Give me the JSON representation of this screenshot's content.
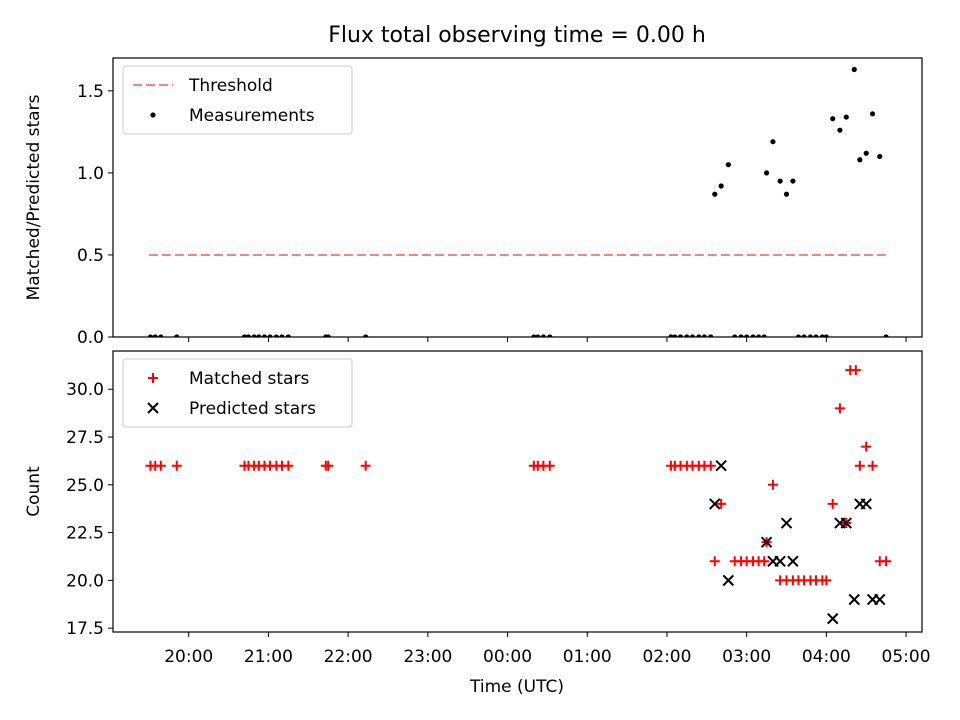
{
  "chart_data": {
    "type": "scatter",
    "title": "Flux total observing time = 0.00 h",
    "xlabel": "Time (UTC)",
    "xlim": [
      -4.95,
      5.2
    ],
    "x_tick_labels": [
      {
        "t": -4.0,
        "label": "20:00"
      },
      {
        "t": -3.0,
        "label": "21:00"
      },
      {
        "t": -2.0,
        "label": "22:00"
      },
      {
        "t": -1.0,
        "label": "23:00"
      },
      {
        "t": 0.0,
        "label": "00:00"
      },
      {
        "t": 1.0,
        "label": "01:00"
      },
      {
        "t": 2.0,
        "label": "02:00"
      },
      {
        "t": 3.0,
        "label": "03:00"
      },
      {
        "t": 4.0,
        "label": "04:00"
      },
      {
        "t": 5.0,
        "label": "05:00"
      }
    ],
    "panels": [
      {
        "ylabel": "Matched/Predicted stars",
        "ylim": [
          0,
          1.7
        ],
        "yticks": [
          0.0,
          0.5,
          1.0,
          1.5
        ],
        "ytick_labels": [
          "0.0",
          "0.5",
          "1.0",
          "1.5"
        ],
        "legend_position": "top-left",
        "series": [
          {
            "name": "Threshold",
            "kind": "dashed-line",
            "color": "#ff8080",
            "x": [
              -4.5,
              4.75
            ],
            "y": [
              0.5,
              0.5
            ]
          },
          {
            "name": "Measurements",
            "kind": "dot",
            "color": "#000000",
            "points": [
              [
                -4.48,
                0
              ],
              [
                -4.42,
                0
              ],
              [
                -4.35,
                0
              ],
              [
                -4.15,
                0
              ],
              [
                -3.3,
                0
              ],
              [
                -3.25,
                0
              ],
              [
                -3.18,
                0
              ],
              [
                -3.12,
                0
              ],
              [
                -3.05,
                0
              ],
              [
                -2.98,
                0
              ],
              [
                -2.9,
                0
              ],
              [
                -2.83,
                0
              ],
              [
                -2.75,
                0
              ],
              [
                -2.28,
                0
              ],
              [
                -2.25,
                0
              ],
              [
                -1.78,
                0
              ],
              [
                0.33,
                0
              ],
              [
                0.38,
                0
              ],
              [
                0.45,
                0
              ],
              [
                0.53,
                0
              ],
              [
                2.05,
                0
              ],
              [
                2.1,
                0
              ],
              [
                2.17,
                0
              ],
              [
                2.25,
                0
              ],
              [
                2.32,
                0
              ],
              [
                2.4,
                0
              ],
              [
                2.47,
                0
              ],
              [
                2.55,
                0
              ],
              [
                2.6,
                0.87
              ],
              [
                2.68,
                0.92
              ],
              [
                2.77,
                1.05
              ],
              [
                2.85,
                0
              ],
              [
                2.93,
                0
              ],
              [
                3.0,
                0
              ],
              [
                3.08,
                0
              ],
              [
                3.15,
                0
              ],
              [
                3.22,
                0
              ],
              [
                3.25,
                1.0
              ],
              [
                3.33,
                1.19
              ],
              [
                3.42,
                0.95
              ],
              [
                3.5,
                0.87
              ],
              [
                3.58,
                0.95
              ],
              [
                3.65,
                0
              ],
              [
                3.72,
                0
              ],
              [
                3.8,
                0
              ],
              [
                3.87,
                0
              ],
              [
                3.95,
                0
              ],
              [
                4.0,
                0
              ],
              [
                4.08,
                1.33
              ],
              [
                4.17,
                1.26
              ],
              [
                4.25,
                1.34
              ],
              [
                4.35,
                1.63
              ],
              [
                4.42,
                1.08
              ],
              [
                4.5,
                1.12
              ],
              [
                4.58,
                1.36
              ],
              [
                4.67,
                1.1
              ],
              [
                4.75,
                0
              ]
            ]
          }
        ]
      },
      {
        "ylabel": "Count",
        "ylim": [
          17.3,
          32.0
        ],
        "yticks": [
          17.5,
          20.0,
          22.5,
          25.0,
          27.5,
          30.0
        ],
        "ytick_labels": [
          "17.5",
          "20.0",
          "22.5",
          "25.0",
          "27.5",
          "30.0"
        ],
        "legend_position": "top-left",
        "series": [
          {
            "name": "Matched stars",
            "kind": "plus",
            "color": "#ff0000",
            "points": [
              [
                -4.48,
                26
              ],
              [
                -4.42,
                26
              ],
              [
                -4.35,
                26
              ],
              [
                -4.15,
                26
              ],
              [
                -3.3,
                26
              ],
              [
                -3.25,
                26
              ],
              [
                -3.18,
                26
              ],
              [
                -3.12,
                26
              ],
              [
                -3.05,
                26
              ],
              [
                -2.98,
                26
              ],
              [
                -2.9,
                26
              ],
              [
                -2.83,
                26
              ],
              [
                -2.75,
                26
              ],
              [
                -2.28,
                26
              ],
              [
                -2.25,
                26
              ],
              [
                -1.78,
                26
              ],
              [
                0.33,
                26
              ],
              [
                0.38,
                26
              ],
              [
                0.45,
                26
              ],
              [
                0.53,
                26
              ],
              [
                2.05,
                26
              ],
              [
                2.1,
                26
              ],
              [
                2.17,
                26
              ],
              [
                2.25,
                26
              ],
              [
                2.32,
                26
              ],
              [
                2.4,
                26
              ],
              [
                2.47,
                26
              ],
              [
                2.55,
                26
              ],
              [
                2.6,
                21
              ],
              [
                2.68,
                24
              ],
              [
                2.85,
                21
              ],
              [
                2.93,
                21
              ],
              [
                3.0,
                21
              ],
              [
                3.08,
                21
              ],
              [
                3.15,
                21
              ],
              [
                3.22,
                21
              ],
              [
                3.25,
                22
              ],
              [
                3.33,
                25
              ],
              [
                3.42,
                20
              ],
              [
                3.5,
                20
              ],
              [
                3.58,
                20
              ],
              [
                3.65,
                20
              ],
              [
                3.72,
                20
              ],
              [
                3.8,
                20
              ],
              [
                3.87,
                20
              ],
              [
                3.95,
                20
              ],
              [
                4.0,
                20
              ],
              [
                4.08,
                24
              ],
              [
                4.17,
                29
              ],
              [
                4.25,
                23
              ],
              [
                4.3,
                31
              ],
              [
                4.37,
                31
              ],
              [
                4.42,
                26
              ],
              [
                4.5,
                27
              ],
              [
                4.58,
                26
              ],
              [
                4.67,
                21
              ],
              [
                4.75,
                21
              ]
            ]
          },
          {
            "name": "Predicted stars",
            "kind": "cross",
            "color": "#000000",
            "points": [
              [
                2.6,
                24
              ],
              [
                2.68,
                26
              ],
              [
                2.77,
                20
              ],
              [
                3.25,
                22
              ],
              [
                3.33,
                21
              ],
              [
                3.42,
                21
              ],
              [
                3.5,
                23
              ],
              [
                3.58,
                21
              ],
              [
                4.08,
                18
              ],
              [
                4.17,
                23
              ],
              [
                4.25,
                23
              ],
              [
                4.35,
                19
              ],
              [
                4.42,
                24
              ],
              [
                4.5,
                24
              ],
              [
                4.58,
                19
              ],
              [
                4.67,
                19
              ]
            ]
          }
        ]
      }
    ]
  }
}
